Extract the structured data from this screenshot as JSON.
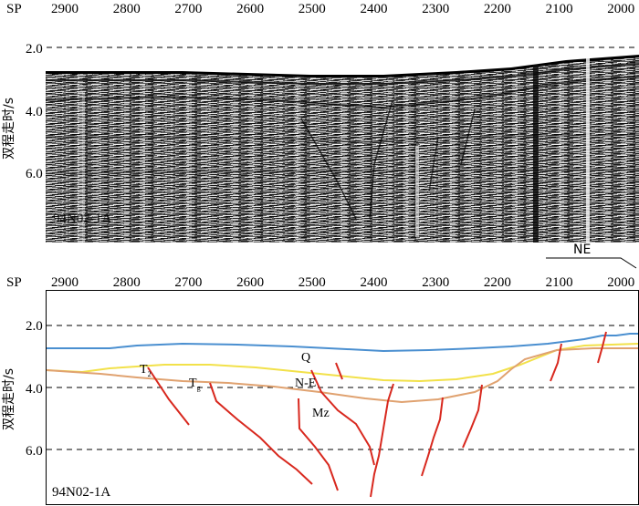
{
  "shotpoint_axis": {
    "prefix": "SP",
    "ticks": [
      "2900",
      "2800",
      "2700",
      "2600",
      "2500",
      "2400",
      "2300",
      "2200",
      "2100",
      "2000"
    ]
  },
  "time_axis": {
    "label": "双程走时/s",
    "ticks": [
      "2.0",
      "4.0",
      "6.0"
    ]
  },
  "top_panel": {
    "line_id": "94N02-1A"
  },
  "direction": {
    "label": "NE"
  },
  "bottom_panel": {
    "line_id": "94N02-1A",
    "horizons": [
      {
        "name": "seafloor",
        "color": "#4a8fd0"
      },
      {
        "name": "T2",
        "color": "#f2e14a"
      },
      {
        "name": "Tg",
        "color": "#e0a270"
      }
    ],
    "units": {
      "q": "Q",
      "ne": "N-E",
      "mz": "Mz",
      "t2_main": "T",
      "t2_sub": "2",
      "tg_main": "T",
      "tg_sub": "g"
    },
    "fault_color": "#d8281e"
  }
}
